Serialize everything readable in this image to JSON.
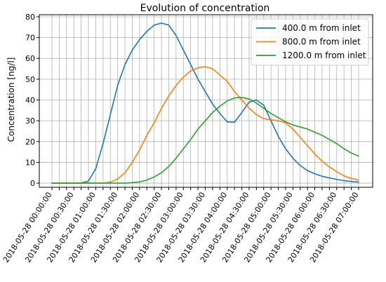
{
  "chart_data": {
    "type": "line",
    "title": "Evolution of concentration",
    "xlabel": "",
    "ylabel": "Concentration [ng/l]",
    "ylim": [
      -2,
      81
    ],
    "yticks": [
      0,
      10,
      20,
      30,
      40,
      50,
      60,
      70,
      80
    ],
    "grid": true,
    "legend_position": "top-right",
    "x": [
      "2018-05-28 00:00:00",
      "2018-05-28 00:10:00",
      "2018-05-28 00:20:00",
      "2018-05-28 00:30:00",
      "2018-05-28 00:40:00",
      "2018-05-28 00:50:00",
      "2018-05-28 01:00:00",
      "2018-05-28 01:10:00",
      "2018-05-28 01:20:00",
      "2018-05-28 01:30:00",
      "2018-05-28 01:40:00",
      "2018-05-28 01:50:00",
      "2018-05-28 02:00:00",
      "2018-05-28 02:10:00",
      "2018-05-28 02:20:00",
      "2018-05-28 02:30:00",
      "2018-05-28 02:40:00",
      "2018-05-28 02:50:00",
      "2018-05-28 03:00:00",
      "2018-05-28 03:10:00",
      "2018-05-28 03:20:00",
      "2018-05-28 03:30:00",
      "2018-05-28 03:40:00",
      "2018-05-28 03:50:00",
      "2018-05-28 04:00:00",
      "2018-05-28 04:10:00",
      "2018-05-28 04:20:00",
      "2018-05-28 04:30:00",
      "2018-05-28 04:40:00",
      "2018-05-28 04:50:00",
      "2018-05-28 05:00:00",
      "2018-05-28 05:10:00",
      "2018-05-28 05:20:00",
      "2018-05-28 05:30:00",
      "2018-05-28 05:40:00",
      "2018-05-28 05:50:00",
      "2018-05-28 06:00:00",
      "2018-05-28 06:10:00",
      "2018-05-28 06:20:00",
      "2018-05-28 06:30:00",
      "2018-05-28 06:40:00",
      "2018-05-28 06:50:00",
      "2018-05-28 07:00:00"
    ],
    "xtick_labels": [
      "2018-05-28 00:00:00",
      "2018-05-28 00:30:00",
      "2018-05-28 01:00:00",
      "2018-05-28 01:30:00",
      "2018-05-28 02:00:00",
      "2018-05-28 02:30:00",
      "2018-05-28 03:00:00",
      "2018-05-28 03:30:00",
      "2018-05-28 04:00:00",
      "2018-05-28 04:30:00",
      "2018-05-28 05:00:00",
      "2018-05-28 05:30:00",
      "2018-05-28 06:00:00",
      "2018-05-28 06:30:00",
      "2018-05-28 07:00:00"
    ],
    "series": [
      {
        "name": "400.0 m from inlet",
        "color": "#1f77b4",
        "values": [
          0,
          0,
          0,
          0,
          0,
          1,
          7,
          19,
          33,
          47,
          57,
          64,
          69,
          73,
          76,
          77,
          76,
          71,
          64,
          57,
          50,
          44,
          38,
          33.5,
          29.5,
          29.3,
          34,
          39,
          40,
          37.5,
          30,
          22.5,
          16.5,
          12,
          8.5,
          6,
          4.5,
          3.3,
          2.5,
          1.8,
          1.2,
          0.8,
          0.5
        ]
      },
      {
        "name": "800.0 m from inlet",
        "color": "#ff7f0e",
        "values": [
          0,
          0,
          0,
          0,
          0,
          0,
          0,
          0,
          0.5,
          2,
          5,
          10,
          16,
          23,
          29,
          36,
          42,
          47,
          51,
          54,
          55.5,
          56,
          55,
          52,
          49,
          44,
          40,
          36,
          33,
          31,
          30.5,
          30,
          29,
          26,
          22,
          18,
          14,
          10.5,
          7.8,
          5.5,
          3.5,
          2.2,
          1.5
        ]
      },
      {
        "name": "1200.0 m from inlet",
        "color": "#2ca02c",
        "values": [
          0,
          0,
          0,
          0,
          0,
          0,
          0,
          0,
          0,
          0,
          0,
          0.2,
          0.6,
          1.5,
          3,
          5,
          8,
          12,
          16.5,
          21,
          26,
          30,
          34,
          37,
          39.5,
          41,
          41.2,
          40.5,
          38.5,
          36,
          33.5,
          31.5,
          29.5,
          28,
          27,
          26,
          24.5,
          23,
          21,
          19,
          16.5,
          14.5,
          13
        ]
      }
    ]
  }
}
